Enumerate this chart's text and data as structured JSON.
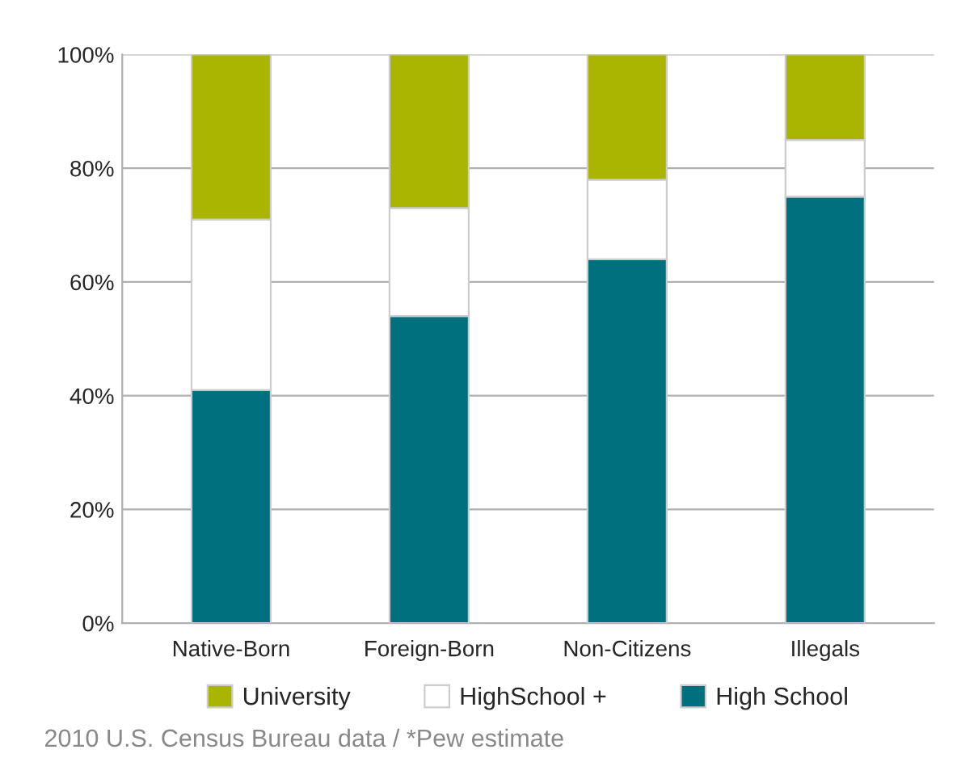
{
  "chart_data": {
    "type": "bar",
    "stacked": true,
    "categories": [
      "Native-Born",
      "Foreign-Born",
      "Non-Citizens",
      "Illegals"
    ],
    "series": [
      {
        "name": "High School",
        "color": "#00707f",
        "values": [
          41,
          54,
          64,
          75
        ]
      },
      {
        "name": "HighSchool +",
        "color": "#ffffff",
        "values": [
          30,
          19,
          14,
          10
        ]
      },
      {
        "name": "University",
        "color": "#a9b500",
        "values": [
          29,
          27,
          22,
          15
        ]
      }
    ],
    "ylim": [
      0,
      100
    ],
    "yticks": [
      {
        "value": 0,
        "label": "0%"
      },
      {
        "value": 20,
        "label": "20%"
      },
      {
        "value": 40,
        "label": "40%"
      },
      {
        "value": 60,
        "label": "60%"
      },
      {
        "value": 80,
        "label": "80%"
      },
      {
        "value": 100,
        "label": "100%"
      }
    ],
    "grid": "y",
    "legend": "bottom",
    "annotations": [
      "2010 U.S. Census Bureau data / *Pew estimate"
    ]
  }
}
